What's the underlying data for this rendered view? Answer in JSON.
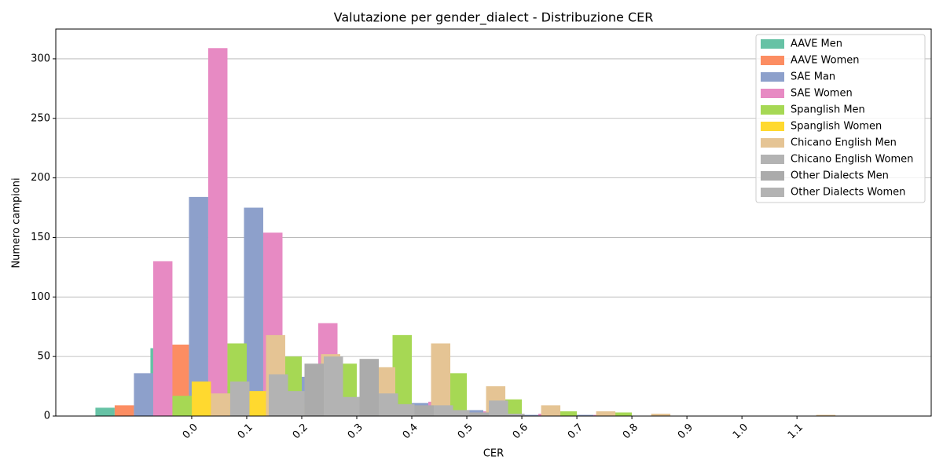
{
  "chart_data": {
    "type": "bar",
    "title": "Valutazione per gender_dialect - Distribuzione CER",
    "xlabel": "CER",
    "ylabel": "Numero campioni",
    "x": [
      0.0,
      0.1,
      0.2,
      0.3,
      0.4,
      0.5,
      0.6,
      0.7,
      0.8,
      0.9,
      1.0,
      1.1
    ],
    "series": [
      {
        "name": "AAVE Men",
        "color": "#66c2a5",
        "values": [
          7,
          57,
          30,
          15,
          6,
          2,
          1,
          0,
          0,
          0,
          0,
          0
        ]
      },
      {
        "name": "AAVE Women",
        "color": "#fc8d62",
        "values": [
          9,
          60,
          25,
          12,
          5,
          2,
          1,
          0,
          0,
          0,
          0,
          0
        ]
      },
      {
        "name": "SAE Man",
        "color": "#8da0cb",
        "values": [
          36,
          184,
          175,
          33,
          16,
          11,
          5,
          1,
          1,
          0,
          0,
          0
        ]
      },
      {
        "name": "SAE Women",
        "color": "#e78ac3",
        "values": [
          130,
          309,
          154,
          78,
          30,
          12,
          4,
          2,
          1,
          0,
          0,
          0
        ]
      },
      {
        "name": "Spanglish Men",
        "color": "#a6d854",
        "values": [
          17,
          61,
          50,
          44,
          68,
          36,
          14,
          4,
          3,
          0,
          0,
          0
        ]
      },
      {
        "name": "Spanglish Women",
        "color": "#ffd92f",
        "values": [
          29,
          21,
          10,
          5,
          2,
          1,
          0,
          0,
          0,
          0,
          0,
          0
        ]
      },
      {
        "name": "Chicano English Men",
        "color": "#e5c494",
        "values": [
          19,
          68,
          52,
          41,
          61,
          25,
          9,
          4,
          2,
          0,
          0,
          1
        ]
      },
      {
        "name": "Chicano English Women",
        "color": "#b3b3b3",
        "values": [
          29,
          21,
          16,
          10,
          5,
          2,
          0,
          0,
          0,
          0,
          0,
          0
        ]
      },
      {
        "name": "Other Dialects Men",
        "color": "#ababab",
        "values": [
          0,
          44,
          48,
          9,
          3,
          0,
          0,
          0,
          0,
          0,
          0,
          0
        ]
      },
      {
        "name": "Other Dialects Women",
        "color": "#b3b3b3",
        "values": [
          35,
          50,
          19,
          9,
          13,
          0,
          0,
          0,
          0,
          0,
          0,
          0
        ]
      }
    ],
    "xlim": [
      -0.247,
      1.344
    ],
    "ylim": [
      0,
      325
    ],
    "xticks": [
      {
        "value": 0.0,
        "label": "0.0"
      },
      {
        "value": 0.1,
        "label": "0.1"
      },
      {
        "value": 0.2,
        "label": "0.2"
      },
      {
        "value": 0.3,
        "label": "0.3"
      },
      {
        "value": 0.4,
        "label": "0.4"
      },
      {
        "value": 0.5,
        "label": "0.5"
      },
      {
        "value": 0.6,
        "label": "0.6"
      },
      {
        "value": 0.7,
        "label": "0.7"
      },
      {
        "value": 0.8,
        "label": "0.8"
      },
      {
        "value": 0.9,
        "label": "0.9"
      },
      {
        "value": 1.0,
        "label": "1.0"
      },
      {
        "value": 1.1,
        "label": "1.1"
      }
    ],
    "yticks": [
      0,
      50,
      100,
      150,
      200,
      250,
      300
    ],
    "grid": true,
    "legend": "upper right"
  }
}
